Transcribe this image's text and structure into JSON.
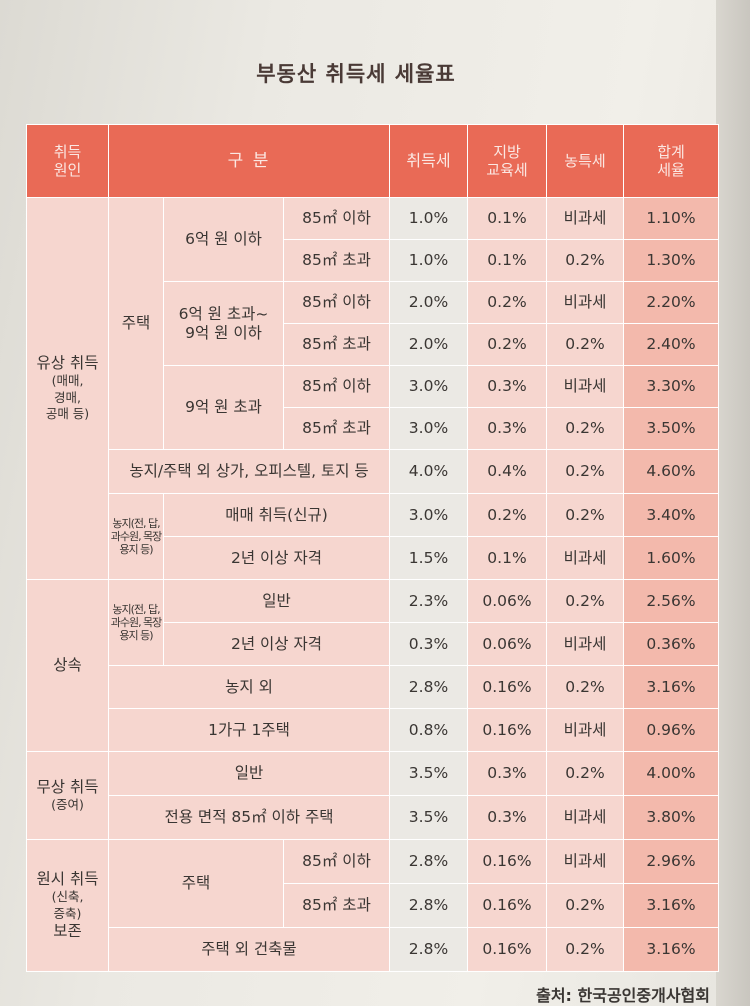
{
  "title": "부동산 취득세 세율표",
  "headers": {
    "cause_1": "취득",
    "cause_2": "원인",
    "category": "구 분",
    "acquisition": "취득세",
    "edu_1": "지방",
    "edu_2": "교육세",
    "rural": "농특세",
    "total_1": "합계",
    "total_2": "세율"
  },
  "causes": {
    "paid_1": "유상 취득",
    "paid_2": "(매매,",
    "paid_3": "경매,",
    "paid_4": "공매 등)",
    "inherit": "상속",
    "gift_1": "무상 취득",
    "gift_2": "(증여)",
    "orig_1": "원시 취득",
    "orig_2": "(신축,",
    "orig_3": "증축)",
    "orig_4": "보존"
  },
  "groups": {
    "house": "주택",
    "tier1": "6억 원 이하",
    "tier2_a": "6억 원 초과~",
    "tier2_b": "9억 원 이하",
    "tier3": "9억 원 초과",
    "farm_1": "농지(전, 답,",
    "farm_2": "과수원, 목장",
    "farm_3": "용지 등)",
    "orig_house": "주택"
  },
  "rows": [
    {
      "label": "85㎡ 이하",
      "acq": "1.0%",
      "edu": "0.1%",
      "rural": "비과세",
      "total": "1.10%"
    },
    {
      "label": "85㎡ 초과",
      "acq": "1.0%",
      "edu": "0.1%",
      "rural": "0.2%",
      "total": "1.30%"
    },
    {
      "label": "85㎡ 이하",
      "acq": "2.0%",
      "edu": "0.2%",
      "rural": "비과세",
      "total": "2.20%"
    },
    {
      "label": "85㎡ 초과",
      "acq": "2.0%",
      "edu": "0.2%",
      "rural": "0.2%",
      "total": "2.40%"
    },
    {
      "label": "85㎡ 이하",
      "acq": "3.0%",
      "edu": "0.3%",
      "rural": "비과세",
      "total": "3.30%"
    },
    {
      "label": "85㎡ 초과",
      "acq": "3.0%",
      "edu": "0.3%",
      "rural": "0.2%",
      "total": "3.50%"
    },
    {
      "label": "농지/주택 외 상가, 오피스텔, 토지 등",
      "acq": "4.0%",
      "edu": "0.4%",
      "rural": "0.2%",
      "total": "4.60%"
    },
    {
      "label": "매매 취득(신규)",
      "acq": "3.0%",
      "edu": "0.2%",
      "rural": "0.2%",
      "total": "3.40%"
    },
    {
      "label": "2년 이상 자격",
      "acq": "1.5%",
      "edu": "0.1%",
      "rural": "비과세",
      "total": "1.60%"
    },
    {
      "label": "일반",
      "acq": "2.3%",
      "edu": "0.06%",
      "rural": "0.2%",
      "total": "2.56%"
    },
    {
      "label": "2년 이상 자격",
      "acq": "0.3%",
      "edu": "0.06%",
      "rural": "비과세",
      "total": "0.36%"
    },
    {
      "label": "농지 외",
      "acq": "2.8%",
      "edu": "0.16%",
      "rural": "0.2%",
      "total": "3.16%"
    },
    {
      "label": "1가구 1주택",
      "acq": "0.8%",
      "edu": "0.16%",
      "rural": "비과세",
      "total": "0.96%"
    },
    {
      "label": "일반",
      "acq": "3.5%",
      "edu": "0.3%",
      "rural": "0.2%",
      "total": "4.00%"
    },
    {
      "label": "전용 면적 85㎡ 이하 주택",
      "acq": "3.5%",
      "edu": "0.3%",
      "rural": "비과세",
      "total": "3.80%"
    },
    {
      "label": "85㎡ 이하",
      "acq": "2.8%",
      "edu": "0.16%",
      "rural": "비과세",
      "total": "2.96%"
    },
    {
      "label": "85㎡ 초과",
      "acq": "2.8%",
      "edu": "0.16%",
      "rural": "0.2%",
      "total": "3.16%"
    },
    {
      "label": "주택 외 건축물",
      "acq": "2.8%",
      "edu": "0.16%",
      "rural": "0.2%",
      "total": "3.16%"
    }
  ],
  "source": "출처: 한국공인중개사협회"
}
